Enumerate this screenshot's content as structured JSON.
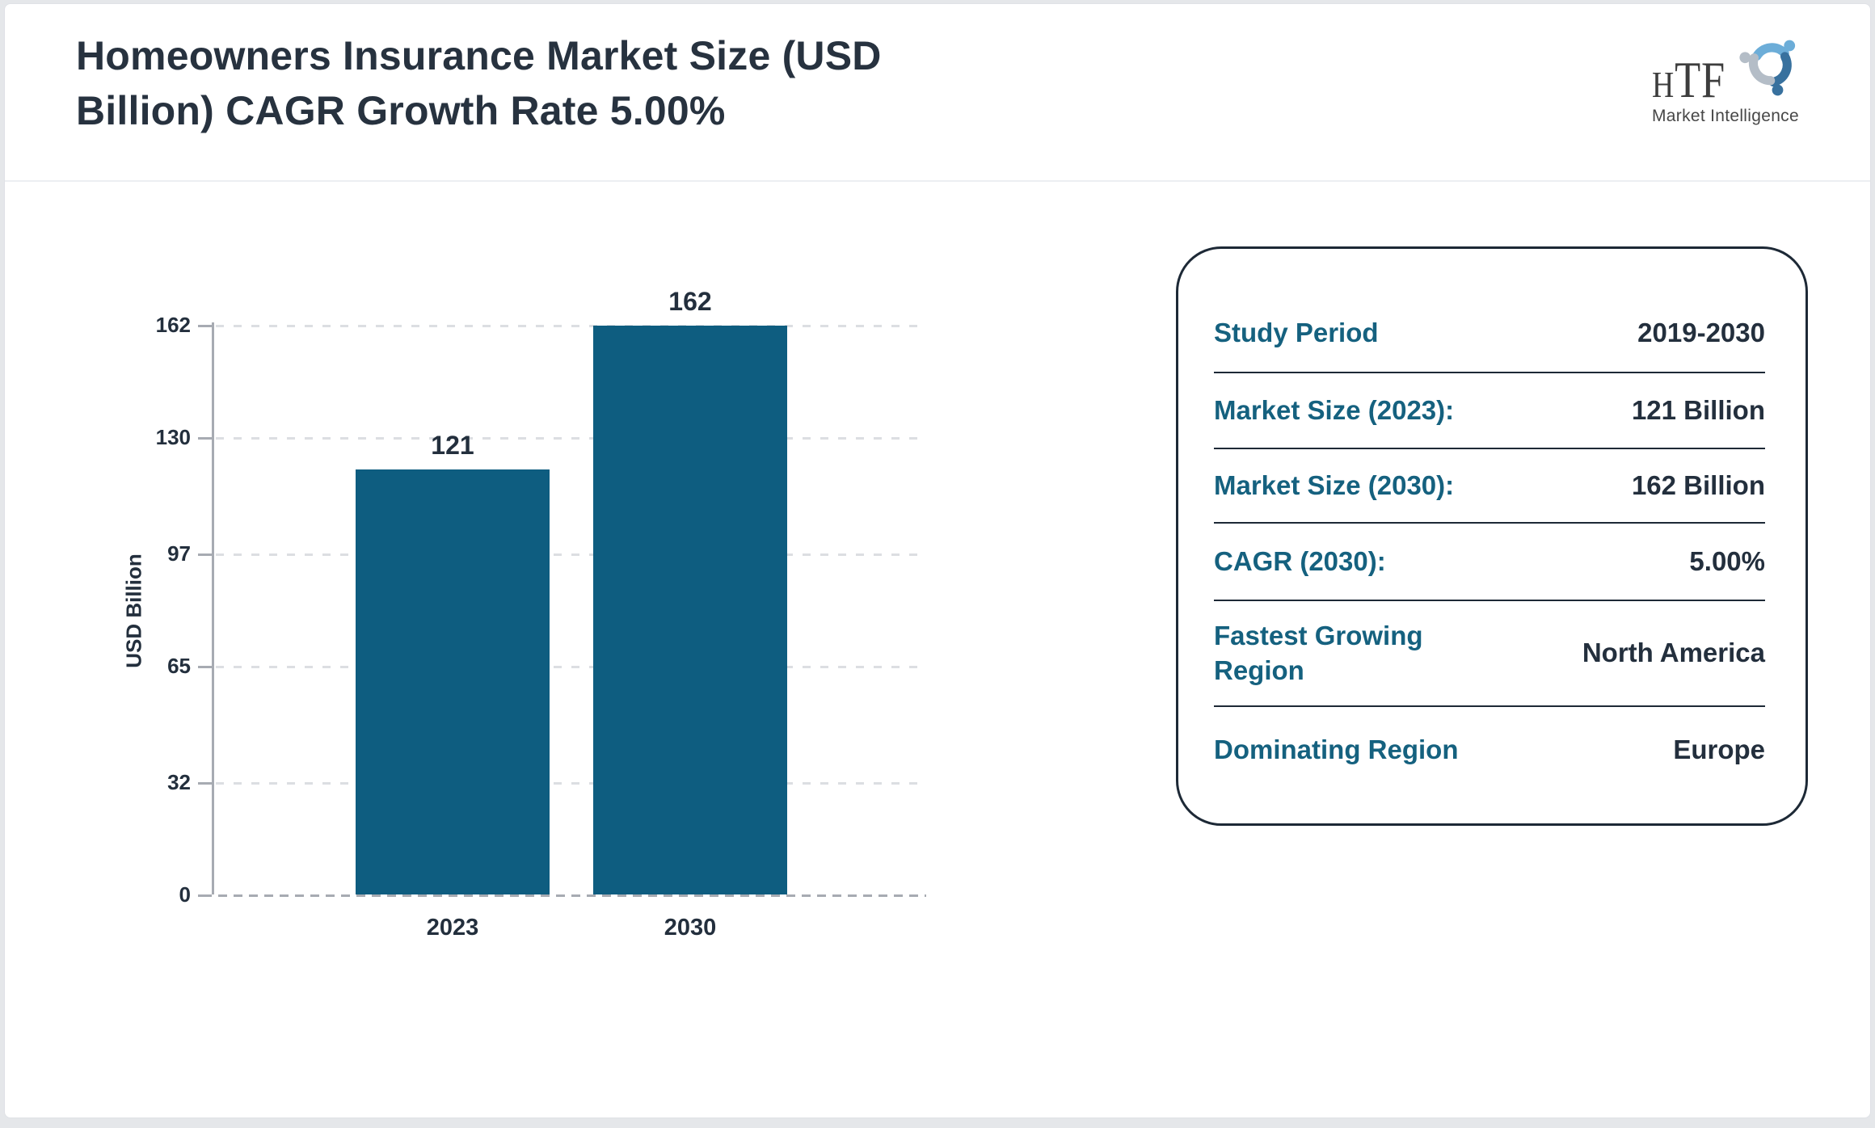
{
  "header": {
    "title": "Homeowners Insurance Market Size (USD Billion) CAGR Growth Rate 5.00%",
    "logo": {
      "brand": "HTF",
      "subtitle": "Market Intelligence"
    }
  },
  "chart_data": {
    "type": "bar",
    "title": "Homeowners Insurance Market Size (USD Billion)",
    "categories": [
      "2023",
      "2030"
    ],
    "values": [
      121,
      162
    ],
    "value_labels": [
      "121",
      "162"
    ],
    "xlabel": "",
    "ylabel": "USD Billion",
    "ylim": [
      0,
      162
    ],
    "yticks": [
      0,
      32,
      65,
      97,
      130,
      162
    ],
    "grid": "horizontal dashed",
    "legend": "none",
    "bar_color": "#0e5d80",
    "axis_color": "#a7abb2",
    "tick_label_color": "#232f3d"
  },
  "panel": {
    "rows": [
      {
        "label": "Study Period",
        "value": "2019-2030"
      },
      {
        "label": "Market Size (2023):",
        "value": "121 Billion"
      },
      {
        "label": "Market Size (2030):",
        "value": "162 Billion"
      },
      {
        "label": "CAGR (2030):",
        "value": "5.00%"
      },
      {
        "label": "Fastest Growing Region",
        "value": "North America"
      },
      {
        "label": "Dominating Region",
        "value": "Europe"
      }
    ],
    "label_color": "#15617f",
    "value_color": "#232f3d"
  }
}
